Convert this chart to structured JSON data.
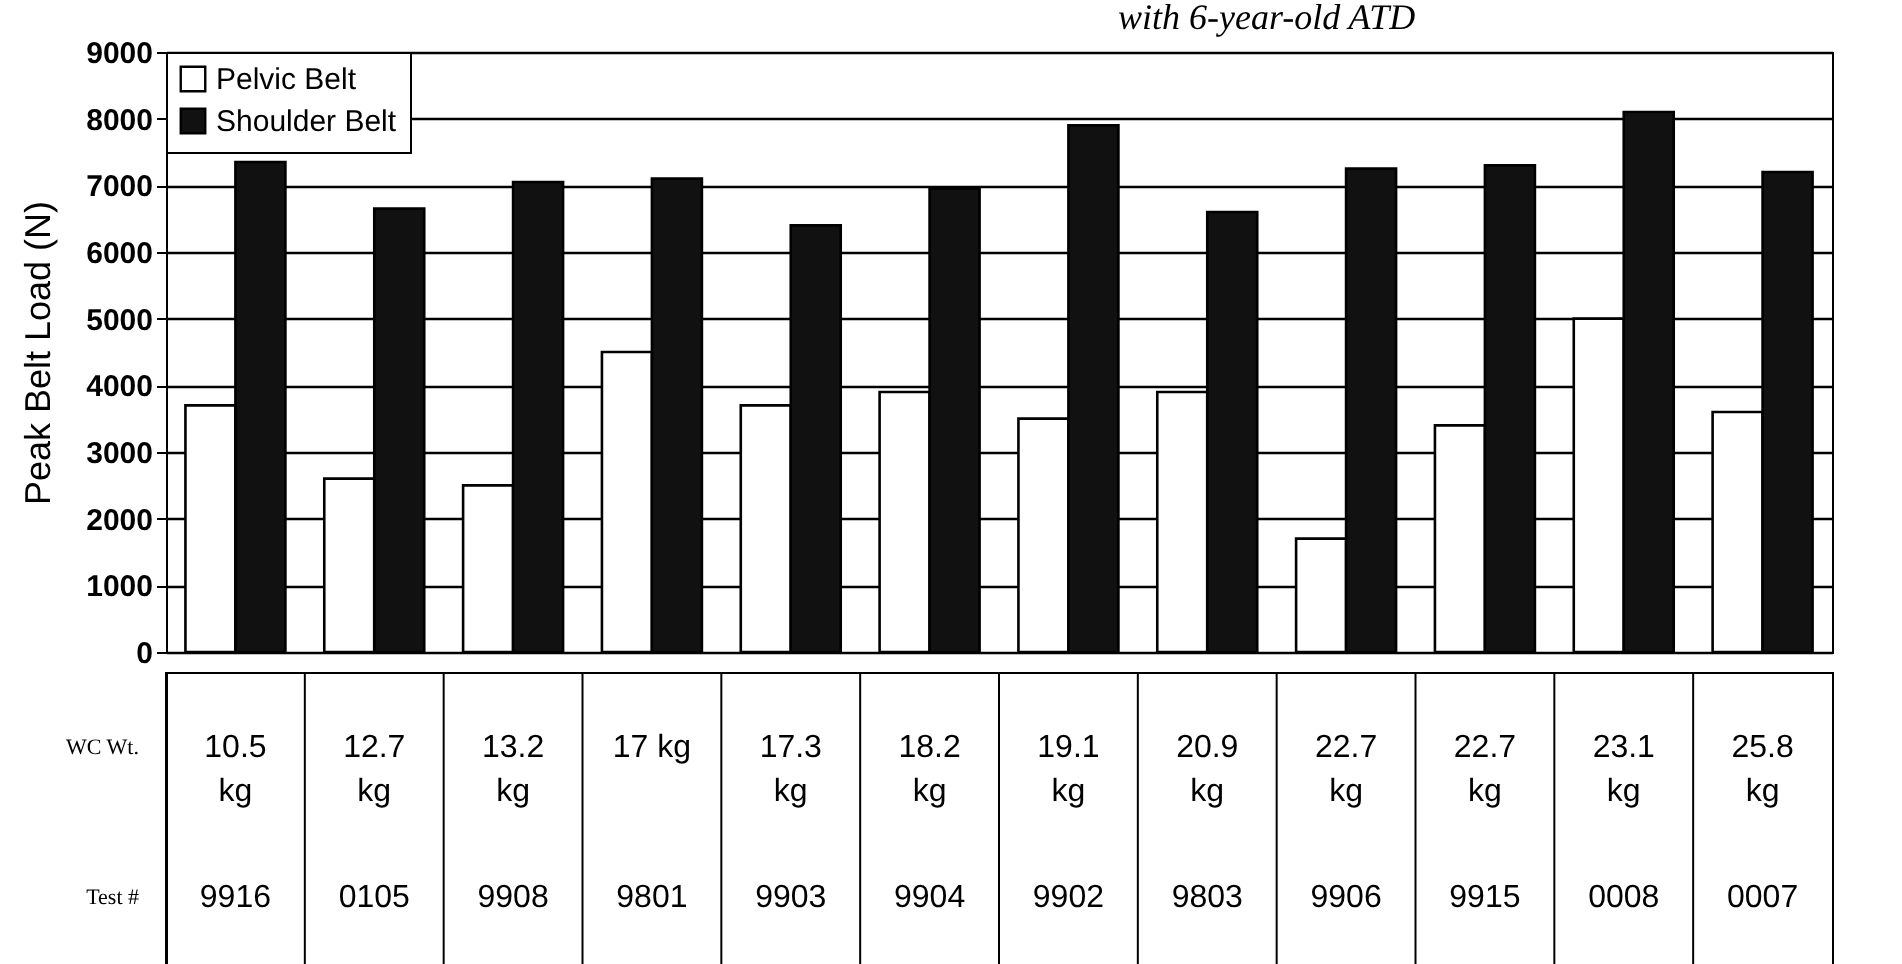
{
  "chart_data": {
    "type": "bar",
    "title": "with 6-year-old ATD",
    "ylabel": "Peak Belt Load (N)",
    "categories": [
      "10.5 kg",
      "12.7 kg",
      "13.2 kg",
      "17 kg",
      "17.3 kg",
      "18.2 kg",
      "19.1 kg",
      "20.9 kg",
      "22.7 kg",
      "22.7 kg",
      "23.1 kg",
      "25.8 kg"
    ],
    "series": [
      {
        "name": "Pelvic Belt",
        "color": "#ffffff",
        "values": [
          3700,
          2600,
          2500,
          4500,
          3700,
          3900,
          3500,
          3900,
          1700,
          3400,
          5000,
          3600
        ]
      },
      {
        "name": "Shoulder Belt",
        "color": "#111111",
        "values": [
          7350,
          6650,
          7050,
          7100,
          6400,
          6950,
          7900,
          6600,
          7250,
          7300,
          8100,
          7200
        ]
      }
    ],
    "ylim": [
      0,
      9000
    ],
    "yticks": [
      0,
      1000,
      2000,
      3000,
      4000,
      5000,
      6000,
      7000,
      8000,
      9000
    ],
    "grid": "y",
    "legend": "top left",
    "annotations": [
      "WC Wt.",
      "Test #",
      "9916",
      "0105",
      "9908",
      "9801",
      "9903",
      "9904",
      "9902",
      "9803",
      "9906",
      "9915",
      "0008",
      "0007"
    ]
  }
}
